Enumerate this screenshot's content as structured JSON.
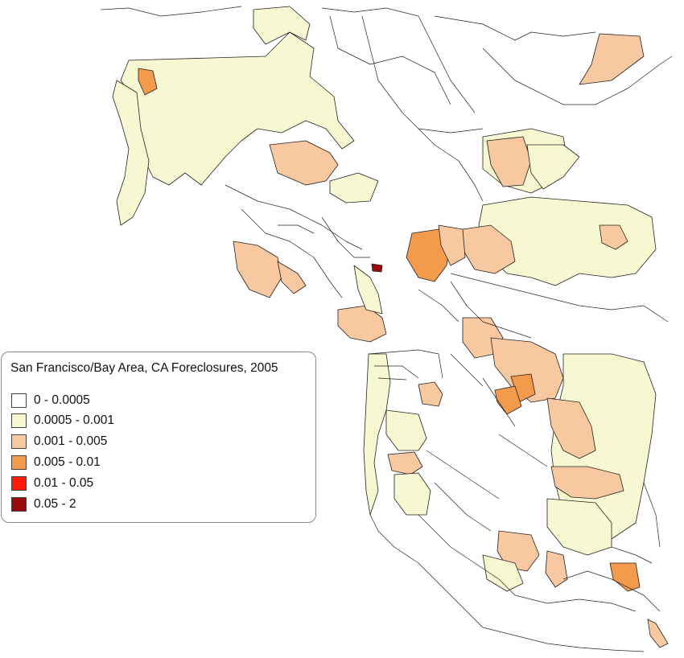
{
  "legend": {
    "title": "San Francisco/Bay Area, CA Foreclosures, 2005",
    "classes": [
      {
        "label": "0 - 0.0005",
        "color": "#ffffff"
      },
      {
        "label": "0.0005 - 0.001",
        "color": "#f7f8d2"
      },
      {
        "label": "0.001 - 0.005",
        "color": "#f8c8a0"
      },
      {
        "label": "0.005 - 0.01",
        "color": "#f49a4c"
      },
      {
        "label": "0.01 - 0.05",
        "color": "#ff1a0a"
      },
      {
        "label": "0.05 - 2",
        "color": "#9b0a0a"
      }
    ]
  },
  "map": {
    "outline_color": "#222222",
    "water_color": "#ffffff"
  }
}
